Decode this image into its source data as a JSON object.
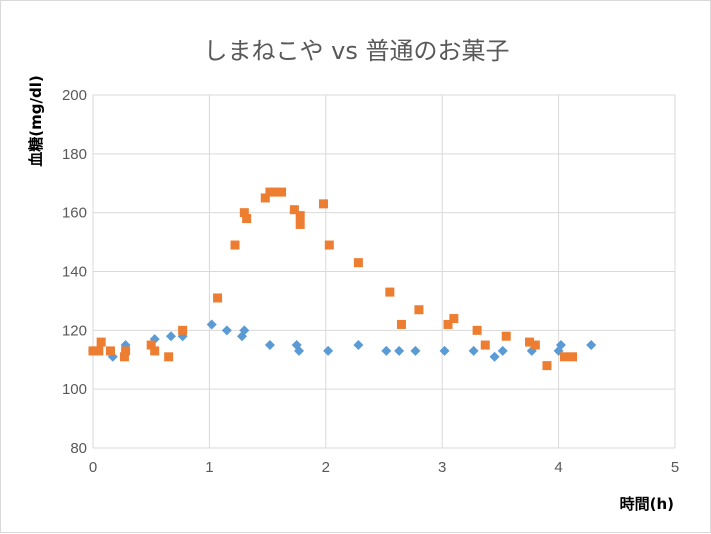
{
  "chart_data": {
    "type": "scatter",
    "title": "しまねこや vs 普通のお菓子",
    "xlabel": "時間(h)",
    "ylabel": "血糖(mg/dl)",
    "xlim": [
      0,
      5
    ],
    "ylim": [
      80,
      200
    ],
    "xticks": [
      "0",
      "1",
      "2",
      "3",
      "4",
      "5"
    ],
    "yticks": [
      "80",
      "100",
      "120",
      "140",
      "160",
      "180",
      "200"
    ],
    "grid": true,
    "legend": "none",
    "series": [
      {
        "color": "#5B9BD5",
        "marker": "diamond",
        "points": [
          [
            0.0,
            113
          ],
          [
            0.17,
            111
          ],
          [
            0.28,
            115
          ],
          [
            0.53,
            117
          ],
          [
            0.67,
            118
          ],
          [
            0.77,
            118
          ],
          [
            1.02,
            122
          ],
          [
            1.15,
            120
          ],
          [
            1.28,
            118
          ],
          [
            1.3,
            120
          ],
          [
            1.52,
            115
          ],
          [
            1.75,
            115
          ],
          [
            1.77,
            113
          ],
          [
            2.02,
            113
          ],
          [
            2.28,
            115
          ],
          [
            2.52,
            113
          ],
          [
            2.63,
            113
          ],
          [
            2.77,
            113
          ],
          [
            3.02,
            113
          ],
          [
            3.27,
            113
          ],
          [
            3.45,
            111
          ],
          [
            3.52,
            113
          ],
          [
            3.77,
            113
          ],
          [
            4.0,
            113
          ],
          [
            4.02,
            115
          ],
          [
            4.28,
            115
          ]
        ]
      },
      {
        "color": "#ED7D31",
        "marker": "square",
        "points": [
          [
            0.0,
            113
          ],
          [
            0.05,
            113
          ],
          [
            0.07,
            116
          ],
          [
            0.15,
            113
          ],
          [
            0.27,
            111
          ],
          [
            0.28,
            113
          ],
          [
            0.5,
            115
          ],
          [
            0.53,
            113
          ],
          [
            0.65,
            111
          ],
          [
            0.77,
            120
          ],
          [
            1.07,
            131
          ],
          [
            1.22,
            149
          ],
          [
            1.3,
            160
          ],
          [
            1.32,
            158
          ],
          [
            1.48,
            165
          ],
          [
            1.52,
            167
          ],
          [
            1.57,
            167
          ],
          [
            1.62,
            167
          ],
          [
            1.73,
            161
          ],
          [
            1.78,
            159
          ],
          [
            1.78,
            156
          ],
          [
            1.98,
            163
          ],
          [
            2.03,
            149
          ],
          [
            2.28,
            143
          ],
          [
            2.55,
            133
          ],
          [
            2.65,
            122
          ],
          [
            2.8,
            127
          ],
          [
            3.05,
            122
          ],
          [
            3.1,
            124
          ],
          [
            3.3,
            120
          ],
          [
            3.37,
            115
          ],
          [
            3.55,
            118
          ],
          [
            3.75,
            116
          ],
          [
            3.8,
            115
          ],
          [
            3.9,
            108
          ],
          [
            4.05,
            111
          ],
          [
            4.12,
            111
          ]
        ]
      }
    ]
  }
}
